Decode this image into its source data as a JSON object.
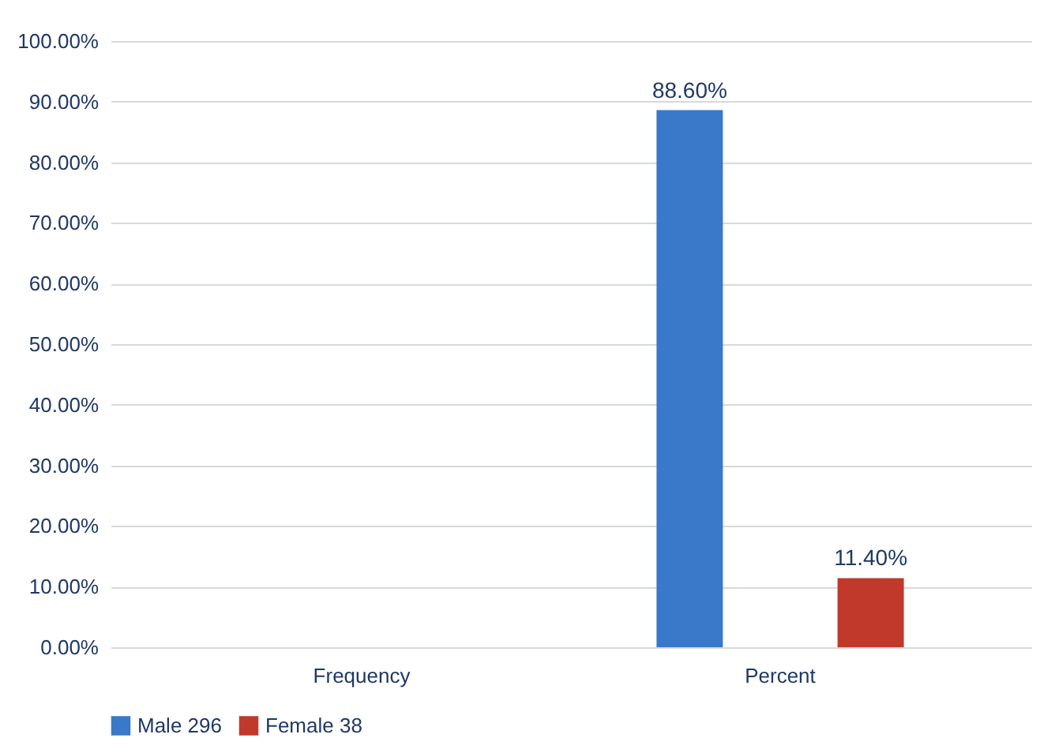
{
  "chart_data": {
    "type": "bar",
    "categories": [
      "Frequency",
      "Percent"
    ],
    "series": [
      {
        "name": "Male 296",
        "color": "#3a78c9",
        "values": [
          null,
          88.6
        ],
        "value_labels": [
          null,
          "88.60%"
        ]
      },
      {
        "name": "Female 38",
        "color": "#c0392b",
        "values": [
          null,
          11.4
        ],
        "value_labels": [
          null,
          "11.40%"
        ]
      }
    ],
    "ylim": [
      0,
      100
    ],
    "yticks": [
      {
        "value": 0,
        "label": "0.00%"
      },
      {
        "value": 10,
        "label": "10.00%"
      },
      {
        "value": 20,
        "label": "20.00%"
      },
      {
        "value": 30,
        "label": "30.00%"
      },
      {
        "value": 40,
        "label": "40.00%"
      },
      {
        "value": 50,
        "label": "50.00%"
      },
      {
        "value": 60,
        "label": "60.00%"
      },
      {
        "value": 70,
        "label": "70.00%"
      },
      {
        "value": 80,
        "label": "80.00%"
      },
      {
        "value": 90,
        "label": "90.00%"
      },
      {
        "value": 100,
        "label": "100.00%"
      }
    ],
    "grid": "y",
    "legend": "bottom"
  }
}
